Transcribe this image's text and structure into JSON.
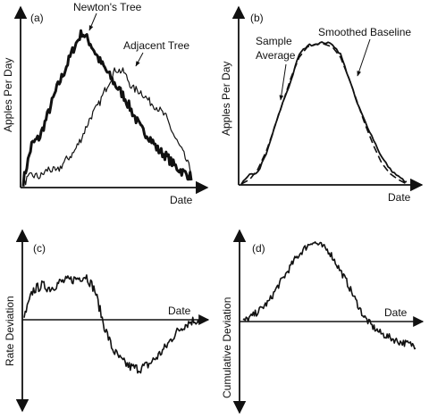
{
  "colors": {
    "ink": "#111111",
    "background": "#ffffff"
  },
  "chart_data": [
    {
      "panel": "(a)",
      "type": "line",
      "xlabel": "Date",
      "ylabel": "Apples Per Day",
      "annotations": [
        "Newton's Tree",
        "Adjacent Tree"
      ],
      "x": [
        0,
        0.05,
        0.1,
        0.15,
        0.2,
        0.25,
        0.3,
        0.35,
        0.4,
        0.45,
        0.5,
        0.55,
        0.6,
        0.65,
        0.7,
        0.75,
        0.8,
        0.85,
        0.9,
        0.95,
        1.0
      ],
      "series": [
        {
          "name": "Newton's Tree",
          "values": [
            0.02,
            0.25,
            0.3,
            0.45,
            0.6,
            0.72,
            0.85,
            0.95,
            0.88,
            0.78,
            0.7,
            0.62,
            0.55,
            0.45,
            0.35,
            0.3,
            0.22,
            0.18,
            0.12,
            0.08,
            0.05
          ]
        },
        {
          "name": "Adjacent Tree",
          "values": [
            0.01,
            0.06,
            0.05,
            0.1,
            0.08,
            0.15,
            0.2,
            0.3,
            0.42,
            0.5,
            0.62,
            0.72,
            0.7,
            0.6,
            0.58,
            0.52,
            0.48,
            0.42,
            0.3,
            0.2,
            0.08
          ]
        }
      ]
    },
    {
      "panel": "(b)",
      "type": "line",
      "xlabel": "Date",
      "ylabel": "Apples Per Day",
      "annotations": [
        "Sample Average",
        "Smoothed Baseline"
      ],
      "x": [
        0,
        0.05,
        0.1,
        0.15,
        0.2,
        0.25,
        0.3,
        0.35,
        0.4,
        0.45,
        0.5,
        0.55,
        0.6,
        0.65,
        0.7,
        0.75,
        0.8,
        0.85,
        0.9,
        0.95,
        1.0
      ],
      "series": [
        {
          "name": "Sample Average",
          "values": [
            0.0,
            0.06,
            0.08,
            0.2,
            0.38,
            0.55,
            0.7,
            0.88,
            0.94,
            0.95,
            0.96,
            0.95,
            0.88,
            0.72,
            0.55,
            0.42,
            0.3,
            0.18,
            0.1,
            0.05,
            0.01
          ]
        },
        {
          "name": "Smoothed Baseline",
          "values": [
            0.0,
            0.03,
            0.1,
            0.22,
            0.38,
            0.55,
            0.72,
            0.86,
            0.93,
            0.95,
            0.95,
            0.93,
            0.86,
            0.72,
            0.56,
            0.4,
            0.26,
            0.14,
            0.07,
            0.03,
            0.0
          ]
        }
      ]
    },
    {
      "panel": "(c)",
      "type": "line",
      "xlabel": "Date",
      "ylabel": "Rate Deviation",
      "x": [
        0,
        0.05,
        0.1,
        0.15,
        0.2,
        0.25,
        0.3,
        0.35,
        0.4,
        0.45,
        0.5,
        0.55,
        0.6,
        0.65,
        0.7,
        0.75,
        0.8,
        0.85,
        0.9,
        0.95,
        1.0
      ],
      "series": [
        {
          "values": [
            0.02,
            0.3,
            0.35,
            0.32,
            0.38,
            0.4,
            0.42,
            0.45,
            0.3,
            -0.05,
            -0.3,
            -0.42,
            -0.48,
            -0.5,
            -0.46,
            -0.38,
            -0.28,
            -0.15,
            -0.06,
            -0.01,
            0.0
          ]
        }
      ]
    },
    {
      "panel": "(d)",
      "type": "line",
      "xlabel": "Date",
      "ylabel": "Cumulative Deviation",
      "x": [
        0,
        0.05,
        0.1,
        0.15,
        0.2,
        0.25,
        0.3,
        0.35,
        0.4,
        0.45,
        0.5,
        0.55,
        0.6,
        0.65,
        0.7,
        0.75,
        0.8,
        0.85,
        0.9,
        0.95,
        1.0
      ],
      "series": [
        {
          "values": [
            0.0,
            0.05,
            0.12,
            0.2,
            0.35,
            0.48,
            0.62,
            0.72,
            0.8,
            0.76,
            0.7,
            0.55,
            0.4,
            0.22,
            0.05,
            -0.05,
            -0.12,
            -0.16,
            -0.2,
            -0.22,
            -0.24
          ]
        }
      ]
    }
  ]
}
